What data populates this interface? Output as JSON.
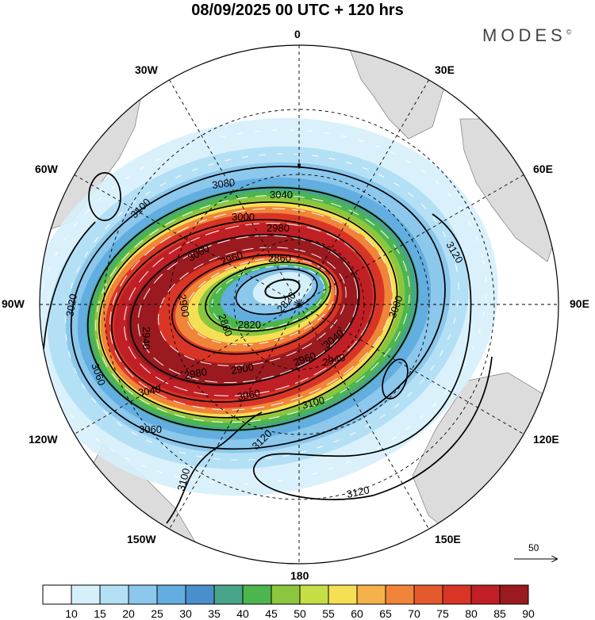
{
  "title": "08/09/2025  00 UTC  + 120 hrs",
  "brand": "MODES",
  "brand_mark": "©",
  "longitude_labels": {
    "lon_0": "0",
    "lon_30e": "30E",
    "lon_60e": "60E",
    "lon_90e": "90E",
    "lon_120e": "120E",
    "lon_150e": "150E",
    "lon_180": "180",
    "lon_150w": "150W",
    "lon_120w": "120W",
    "lon_90w": "90W",
    "lon_60w": "60W",
    "lon_30w": "30W"
  },
  "contour_labels": [
    "2820",
    "2860",
    "2900",
    "2940",
    "2980",
    "3000",
    "3020",
    "3040",
    "3060",
    "3080",
    "3100",
    "3120"
  ],
  "contour_label_instances": {
    "c1": "3080",
    "c2": "3040",
    "c3": "3000",
    "c4": "2980",
    "c5": "2960",
    "c6": "2860",
    "c7": "3100",
    "c8": "3120",
    "c9": "2820",
    "c10": "2860",
    "c11": "2900",
    "c12": "2940",
    "c13": "3020",
    "c14": "2900",
    "c15": "2980",
    "c16": "2960",
    "c17": "3040",
    "c18": "3060",
    "c19": "3060",
    "c20": "3040",
    "c21": "3060",
    "c22": "3100",
    "c23": "3080",
    "c24": "3120",
    "c25": "3120",
    "c26": "3100",
    "c27": "3060",
    "c28": "2940",
    "c29": "2820",
    "c30": "3120"
  },
  "colorbar": {
    "labels": [
      "10",
      "15",
      "20",
      "25",
      "30",
      "35",
      "40",
      "45",
      "50",
      "55",
      "60",
      "65",
      "70",
      "75",
      "80",
      "85",
      "90"
    ],
    "colors": [
      "#ffffff",
      "#d6f0fb",
      "#b4e0f6",
      "#8cc7ec",
      "#63aee0",
      "#4a8fcb",
      "#48a48a",
      "#4cb54e",
      "#8cc63f",
      "#c6de45",
      "#f5e055",
      "#f5b24a",
      "#f0853a",
      "#e55a2c",
      "#d93526",
      "#c01f25",
      "#9a1a1f"
    ]
  },
  "vector_scale_label": "50",
  "colors": {
    "continent": "#dcdcdc",
    "coast": "#888888",
    "contour": "#000000",
    "grid": "#000000"
  }
}
